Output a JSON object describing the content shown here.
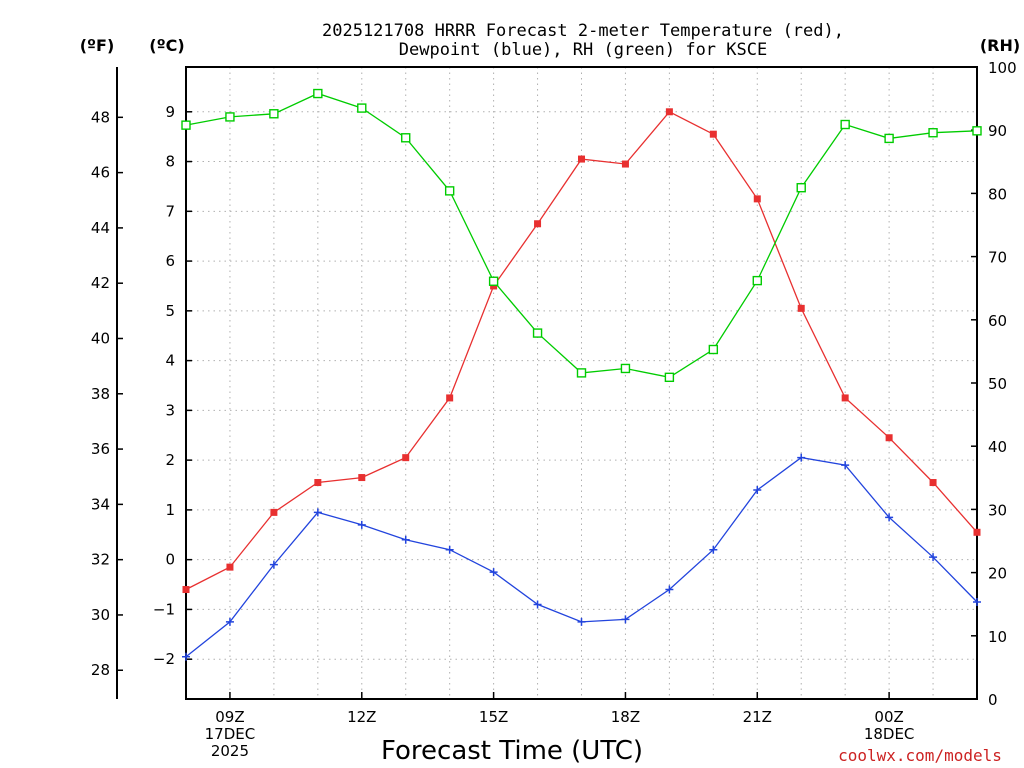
{
  "chart_data": {
    "type": "line",
    "title_line1": "2025121708 HRRR Forecast 2-meter Temperature (red),",
    "title_line2": "Dewpoint (blue), RH (green) for KSCE",
    "xlabel": "Forecast Time (UTC)",
    "credit": "coolwx.com/models",
    "left_unit_f": "(ºF)",
    "left_unit_c": "(ºC)",
    "right_unit": "(RH)",
    "x_range_hours": [
      8,
      26
    ],
    "x_ticks": [
      {
        "hour": 9,
        "lines": [
          "09Z",
          "17DEC",
          "2025"
        ]
      },
      {
        "hour": 12,
        "lines": [
          "12Z"
        ]
      },
      {
        "hour": 15,
        "lines": [
          "15Z"
        ]
      },
      {
        "hour": 18,
        "lines": [
          "18Z"
        ]
      },
      {
        "hour": 21,
        "lines": [
          "21Z"
        ]
      },
      {
        "hour": 24,
        "lines": [
          "00Z",
          "18DEC"
        ]
      }
    ],
    "y_celsius_range": [
      -2.8,
      9.9
    ],
    "y_celsius_ticks": [
      -2,
      -1,
      0,
      1,
      2,
      3,
      4,
      5,
      6,
      7,
      8,
      9
    ],
    "y_fahrenheit_ticks": [
      28,
      30,
      32,
      34,
      36,
      38,
      40,
      42,
      44,
      46,
      48
    ],
    "y_rh_range": [
      0,
      100
    ],
    "y_rh_ticks": [
      0,
      10,
      20,
      30,
      40,
      50,
      60,
      70,
      80,
      90,
      100
    ],
    "hours": [
      8,
      9,
      10,
      11,
      12,
      13,
      14,
      15,
      16,
      17,
      18,
      19,
      20,
      21,
      22,
      23,
      24,
      25,
      26
    ],
    "series": [
      {
        "name": "2-meter Temperature",
        "unit": "C",
        "color": "#e83030",
        "marker": "filled-square",
        "values": [
          -0.6,
          -0.15,
          0.95,
          1.55,
          1.65,
          2.05,
          3.25,
          5.5,
          6.75,
          8.05,
          7.95,
          9.0,
          8.55,
          7.25,
          5.05,
          3.25,
          2.45,
          1.55,
          0.55
        ]
      },
      {
        "name": "Dewpoint",
        "unit": "C",
        "color": "#2244dd",
        "marker": "plus",
        "values": [
          -1.95,
          -1.25,
          -0.1,
          0.95,
          0.7,
          0.4,
          0.2,
          -0.25,
          -0.9,
          -1.25,
          -1.2,
          -0.6,
          0.2,
          1.4,
          2.05,
          1.9,
          0.85,
          0.05,
          -0.85
        ]
      },
      {
        "name": "Relative Humidity",
        "unit": "%",
        "color": "#00cc00",
        "marker": "open-square",
        "values": [
          90.8,
          92.1,
          92.6,
          95.8,
          93.5,
          88.8,
          80.4,
          66.1,
          57.9,
          51.6,
          52.3,
          50.9,
          55.3,
          66.2,
          80.9,
          90.9,
          88.7,
          89.6,
          89.9
        ]
      }
    ]
  }
}
